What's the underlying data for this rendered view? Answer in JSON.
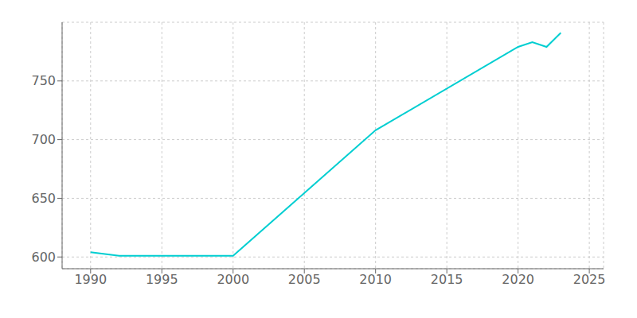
{
  "chart_data": {
    "type": "line",
    "x": [
      1990,
      1992,
      2000,
      2010,
      2020,
      2021,
      2022,
      2023
    ],
    "values": [
      604,
      601,
      601,
      708,
      779,
      783,
      779,
      791
    ],
    "color": "#00CED1",
    "xlim": [
      1988,
      2026
    ],
    "ylim": [
      590,
      800
    ],
    "xticks": [
      1990,
      1995,
      2000,
      2005,
      2010,
      2015,
      2020,
      2025
    ],
    "yticks": [
      600,
      650,
      700,
      750
    ],
    "grid": true
  }
}
